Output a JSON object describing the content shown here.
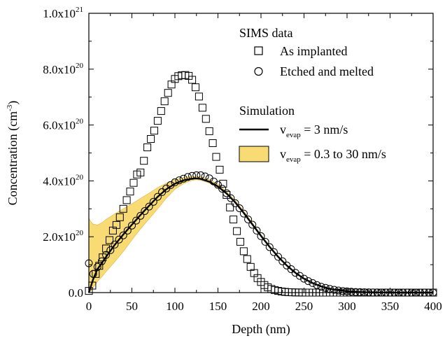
{
  "chart_data": {
    "type": "scatter",
    "xlabel": "Depth (nm)",
    "ylabel": {
      "main": "Concentration (cm",
      "sup": "-3",
      "close": ")"
    },
    "xlim": [
      0,
      400
    ],
    "ylim": [
      0,
      1e+21
    ],
    "x_ticks": [
      0,
      50,
      100,
      150,
      200,
      250,
      300,
      350,
      400
    ],
    "x_tick_labels": [
      "0",
      "50",
      "100",
      "150",
      "200",
      "250",
      "300",
      "350",
      "400"
    ],
    "y_ticks": [
      0,
      2e+20,
      4e+20,
      6e+20,
      8e+20,
      1e+21
    ],
    "y_tick_labels": [
      {
        "base": "0.0",
        "exp": ""
      },
      {
        "base": "2.0x10",
        "exp": "20"
      },
      {
        "base": "4.0x10",
        "exp": "20"
      },
      {
        "base": "6.0x10",
        "exp": "20"
      },
      {
        "base": "8.0x10",
        "exp": "20"
      },
      {
        "base": "1.0x10",
        "exp": "21"
      }
    ],
    "grid": false,
    "legend": {
      "placement": "top-right",
      "group1_title": "SIMS data",
      "group2_title": "Simulation",
      "entries": {
        "as_implanted": "As implanted",
        "etched": "Etched and melted",
        "sim_prefix": "v",
        "sim_sub": "evap",
        "sim_line": " = 3 nm/s",
        "sim_band": " = 0.3 to 30 nm/s"
      }
    },
    "colors": {
      "band": "#f8db72",
      "band_edge": "#d8b540",
      "line": "#000000",
      "marker": "#000000"
    },
    "series": [
      {
        "name": "As implanted",
        "marker": "square",
        "x": [
          0,
          4,
          8,
          12,
          16,
          20,
          24,
          28,
          32,
          36,
          40,
          44,
          48,
          52,
          56,
          60,
          64,
          68,
          72,
          76,
          80,
          84,
          88,
          92,
          96,
          100,
          104,
          108,
          112,
          116,
          120,
          124,
          128,
          132,
          136,
          140,
          144,
          148,
          152,
          156,
          160,
          164,
          168,
          172,
          176,
          180,
          184,
          188,
          192,
          196,
          200,
          204,
          208,
          212,
          216,
          220,
          224,
          228,
          232,
          236,
          240,
          244,
          248,
          252,
          256,
          260,
          264,
          268,
          272,
          276,
          280,
          284,
          288,
          292,
          296,
          300,
          304,
          308,
          312,
          316,
          320,
          324,
          328,
          332,
          336,
          340,
          344,
          348,
          352,
          356,
          360,
          364,
          368,
          372,
          376,
          380,
          384,
          388,
          392,
          396,
          400
        ],
        "y": [
          6e+18,
          2.5e+19,
          6.7e+19,
          9.6e+19,
          1.26e+20,
          1.58e+20,
          1.88e+20,
          2.22e+20,
          2.42e+20,
          2.7e+20,
          3e+20,
          3.31e+20,
          3.62e+20,
          3.93e+20,
          4.23e+20,
          4.3e+20,
          4.72e+20,
          5.2e+20,
          5.5e+20,
          5.8e+20,
          6.15e+20,
          6.5e+20,
          6.85e+20,
          7.15e+20,
          7.45e+20,
          7.65e+20,
          7.75e+20,
          7.78e+20,
          7.79e+20,
          7.76e+20,
          7.62e+20,
          7.35e+20,
          7.02e+20,
          6.62e+20,
          6.22e+20,
          5.78e+20,
          5.35e+20,
          4.86e+20,
          4.4e+20,
          3.9e+20,
          3.5e+20,
          3.05e+20,
          2.62e+20,
          2.2e+20,
          1.82e+20,
          1.48e+20,
          1.2e+20,
          9.2e+19,
          7e+19,
          5.2e+19,
          3.8e+19,
          2.7e+19,
          1.9e+19,
          1.3e+19,
          9e+18,
          6e+18,
          4e+18,
          2.6e+18,
          1.6e+18,
          1e+18,
          6e+17,
          4e+17,
          2e+17,
          1e+17,
          5e+16,
          3e+16,
          1e+16,
          0,
          0,
          0,
          0,
          0,
          0,
          0,
          0,
          0,
          0,
          0,
          0,
          0,
          0,
          0,
          0,
          0,
          0,
          0,
          0,
          0,
          0,
          0,
          0,
          0,
          0,
          0,
          0,
          0,
          0,
          0,
          0,
          0,
          0
        ]
      },
      {
        "name": "Etched and melted",
        "marker": "circle",
        "x": [
          0,
          5,
          10,
          15,
          20,
          25,
          30,
          35,
          40,
          45,
          50,
          55,
          60,
          65,
          70,
          75,
          80,
          85,
          90,
          95,
          100,
          105,
          110,
          115,
          120,
          125,
          130,
          135,
          140,
          145,
          150,
          155,
          160,
          165,
          170,
          175,
          180,
          185,
          190,
          195,
          200,
          205,
          210,
          215,
          220,
          225,
          230,
          235,
          240,
          245,
          250,
          255,
          260,
          265,
          270,
          275,
          280,
          285,
          290,
          295,
          300,
          305,
          310,
          315,
          320,
          325,
          330,
          335,
          340,
          345,
          350,
          355,
          360,
          365,
          370,
          375,
          380,
          385,
          390,
          395,
          400
        ],
        "y": [
          1.05e+20,
          6.7e+19,
          9.2e+19,
          1.12e+20,
          1.35e+20,
          1.52e+20,
          1.72e+20,
          1.9e+20,
          2.05e+20,
          2.22e+20,
          2.4e+20,
          2.58e+20,
          2.75e+20,
          2.92e+20,
          3.08e+20,
          3.25e+20,
          3.43e+20,
          3.6e+20,
          3.73e+20,
          3.85e+20,
          3.95e+20,
          4.02e+20,
          4.08e+20,
          4.14e+20,
          4.18e+20,
          4.2e+20,
          4.2e+20,
          4.16e+20,
          4.09e+20,
          3.98e+20,
          3.86e+20,
          3.72e+20,
          3.56e+20,
          3.38e+20,
          3.2e+20,
          3.02e+20,
          2.83e+20,
          2.62e+20,
          2.43e+20,
          2.22e+20,
          2.02e+20,
          1.82e+20,
          1.63e+20,
          1.45e+20,
          1.28e+20,
          1.12e+20,
          9.7e+19,
          8.4e+19,
          7.1e+19,
          6e+19,
          5e+19,
          4.1e+19,
          3.4e+19,
          2.7e+19,
          2.1e+19,
          1.7e+19,
          1.3e+19,
          1e+19,
          7.5e+18,
          5.6e+18,
          4.2e+18,
          3.1e+18,
          2.3e+18,
          1.7e+18,
          1.2e+18,
          9e+17,
          6e+17,
          4e+17,
          3e+17,
          2e+17,
          1.5e+17,
          1e+17,
          5e+16,
          3e+16,
          2e+16,
          1e+16,
          0,
          0,
          0,
          0,
          0
        ]
      },
      {
        "name": "v_evap = 3 nm/s",
        "type": "line",
        "x": [
          0,
          5,
          10,
          20,
          30,
          40,
          50,
          60,
          70,
          80,
          90,
          100,
          110,
          120,
          125,
          130,
          140,
          150,
          160,
          170,
          180,
          190,
          200,
          210,
          220,
          230,
          240,
          250,
          260,
          270,
          280,
          290,
          300,
          320,
          340,
          360,
          380,
          400
        ],
        "y": [
          0,
          4.8e+19,
          8.4e+19,
          1.28e+20,
          1.71e+20,
          2.08e+20,
          2.43e+20,
          2.78e+20,
          3.11e+20,
          3.43e+20,
          3.7e+20,
          3.9e+20,
          4.02e+20,
          4.08e+20,
          4.09e+20,
          4.07e+20,
          3.97e+20,
          3.8e+20,
          3.55e+20,
          3.23e+20,
          2.85e+20,
          2.44e+20,
          2.03e+20,
          1.64e+20,
          1.28e+20,
          9.7e+19,
          7.1e+19,
          5e+19,
          3.4e+19,
          2.2e+19,
          1.4e+19,
          8.5e+18,
          5e+18,
          1.5e+18,
          4e+17,
          1e+17,
          0,
          0
        ]
      },
      {
        "name": "v_evap = 0.3 to 30 nm/s",
        "type": "band",
        "x": [
          0,
          2,
          5,
          10,
          15,
          20,
          30,
          40,
          50,
          60,
          70,
          80,
          90,
          100,
          110,
          120,
          125,
          130,
          140,
          150,
          160,
          170,
          180,
          190,
          200,
          210,
          220,
          230,
          240,
          250,
          260,
          280,
          300,
          320,
          340,
          360,
          380,
          400
        ],
        "upper": [
          2.68e+20,
          2.55e+20,
          2.45e+20,
          2.42e+20,
          2.5e+20,
          2.62e+20,
          2.82e+20,
          3e+20,
          3.18e+20,
          3.37e+20,
          3.56e+20,
          3.76e+20,
          3.92e+20,
          4.04e+20,
          4.12e+20,
          4.16e+20,
          4.16e+20,
          4.14e+20,
          4.05e+20,
          3.88e+20,
          3.63e+20,
          3.3e+20,
          2.92e+20,
          2.5e+20,
          2.08e+20,
          1.68e+20,
          1.31e+20,
          1e+20,
          7.3e+19,
          5.2e+19,
          3.5e+19,
          1.5e+19,
          5.5e+18,
          1.8e+18,
          5e+17,
          1e+17,
          0,
          0
        ],
        "lower": [
          0,
          5e+18,
          1.8e+19,
          4e+19,
          5.6e+19,
          7.5e+19,
          1.1e+20,
          1.47e+20,
          1.88e+20,
          2.28e+20,
          2.64e+20,
          3e+20,
          3.38e+20,
          3.7e+20,
          3.9e+20,
          4.02e+20,
          4.04e+20,
          4.02e+20,
          3.92e+20,
          3.76e+20,
          3.52e+20,
          3.2e+20,
          2.83e+20,
          2.42e+20,
          2e+20,
          1.61e+20,
          1.25e+20,
          9.4e+19,
          6.8e+19,
          4.8e+19,
          3.2e+19,
          1.3e+19,
          4.8e+18,
          1.5e+18,
          4e+17,
          1e+17,
          0,
          0
        ]
      }
    ]
  }
}
